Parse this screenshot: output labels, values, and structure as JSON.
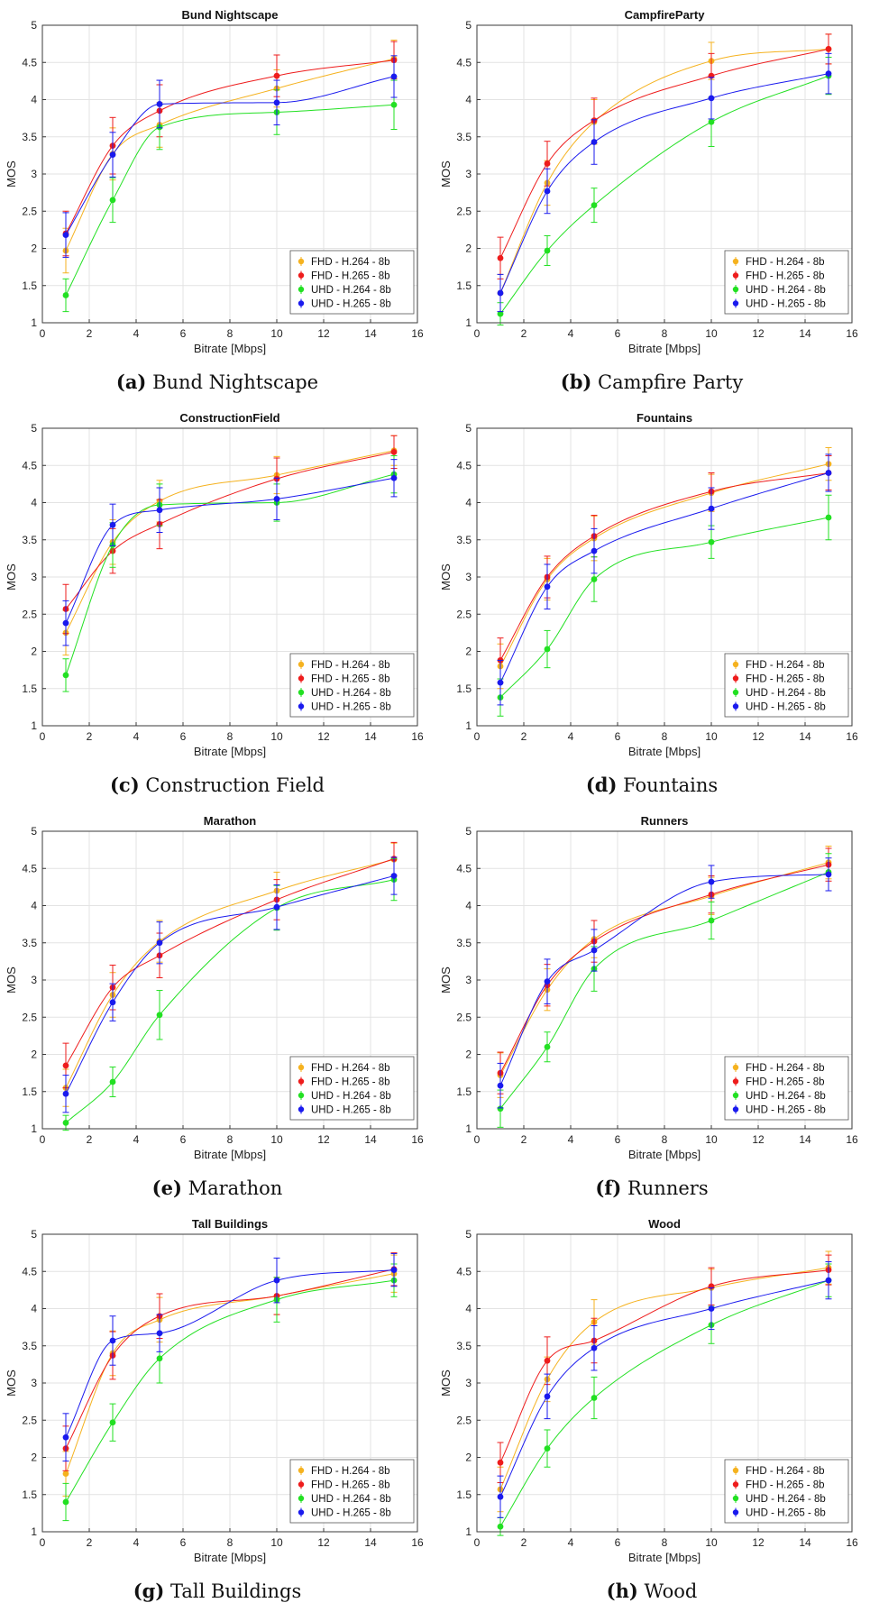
{
  "legend": [
    "FHD - H.264 - 8b",
    "FHD - H.265 - 8b",
    "UHD - H.264 - 8b",
    "UHD - H.265 - 8b"
  ],
  "series_colors": [
    "#f5b21f",
    "#ee1c1c",
    "#22e022",
    "#1a1aee"
  ],
  "chart_data": [
    {
      "type": "scatter",
      "title": "Bund Nightscape",
      "caption_label": "(a)",
      "caption_text": "Bund Nightscape",
      "xlabel": "Bitrate [Mbps]",
      "ylabel": "MOS",
      "xlim": [
        0,
        16
      ],
      "ylim": [
        1,
        5
      ],
      "xticks": [
        0,
        2,
        4,
        6,
        8,
        10,
        12,
        14,
        16
      ],
      "yticks": [
        1,
        1.5,
        2,
        2.5,
        3,
        3.5,
        4,
        4.5,
        5
      ],
      "x": [
        1,
        3,
        5,
        10,
        15
      ],
      "series": [
        {
          "name": "FHD - H.264 - 8b",
          "values": [
            1.97,
            3.27,
            3.66,
            4.15,
            4.55
          ],
          "err": [
            0.3,
            0.35,
            0.3,
            0.25,
            0.25
          ]
        },
        {
          "name": "FHD - H.265 - 8b",
          "values": [
            2.2,
            3.38,
            3.85,
            4.32,
            4.53
          ],
          "err": [
            0.3,
            0.38,
            0.35,
            0.28,
            0.25
          ]
        },
        {
          "name": "UHD - H.264 - 8b",
          "values": [
            1.37,
            2.65,
            3.63,
            3.83,
            3.93
          ],
          "err": [
            0.22,
            0.3,
            0.3,
            0.3,
            0.33
          ]
        },
        {
          "name": "UHD - H.265 - 8b",
          "values": [
            2.18,
            3.26,
            3.94,
            3.96,
            4.31
          ],
          "err": [
            0.3,
            0.3,
            0.32,
            0.3,
            0.28
          ]
        }
      ]
    },
    {
      "type": "scatter",
      "title": "CampfireParty",
      "caption_label": "(b)",
      "caption_text": "Campfire Party",
      "xlabel": "Bitrate [Mbps]",
      "ylabel": "MOS",
      "xlim": [
        0,
        16
      ],
      "ylim": [
        1,
        5
      ],
      "xticks": [
        0,
        2,
        4,
        6,
        8,
        10,
        12,
        14,
        16
      ],
      "yticks": [
        1,
        1.5,
        2,
        2.5,
        3,
        3.5,
        4,
        4.5,
        5
      ],
      "x": [
        1,
        3,
        5,
        10,
        15
      ],
      "series": [
        {
          "name": "FHD - H.264 - 8b",
          "values": [
            1.4,
            2.88,
            3.7,
            4.52,
            4.68
          ],
          "err": [
            0.25,
            0.3,
            0.3,
            0.25,
            0.2
          ]
        },
        {
          "name": "FHD - H.265 - 8b",
          "values": [
            1.87,
            3.14,
            3.72,
            4.32,
            4.68
          ],
          "err": [
            0.28,
            0.3,
            0.3,
            0.3,
            0.2
          ]
        },
        {
          "name": "UHD - H.264 - 8b",
          "values": [
            1.12,
            1.97,
            2.58,
            3.7,
            4.32
          ],
          "err": [
            0.15,
            0.2,
            0.23,
            0.33,
            0.25
          ]
        },
        {
          "name": "UHD - H.265 - 8b",
          "values": [
            1.4,
            2.77,
            3.43,
            4.02,
            4.35
          ],
          "err": [
            0.25,
            0.3,
            0.3,
            0.28,
            0.27
          ]
        }
      ]
    },
    {
      "type": "scatter",
      "title": "ConstructionField",
      "caption_label": "(c)",
      "caption_text": "Construction Field",
      "xlabel": "Bitrate [Mbps]",
      "ylabel": "MOS",
      "xlim": [
        0,
        16
      ],
      "ylim": [
        1,
        5
      ],
      "xticks": [
        0,
        2,
        4,
        6,
        8,
        10,
        12,
        14,
        16
      ],
      "yticks": [
        1,
        1.5,
        2,
        2.5,
        3,
        3.5,
        4,
        4.5,
        5
      ],
      "x": [
        1,
        3,
        5,
        10,
        15
      ],
      "series": [
        {
          "name": "FHD - H.264 - 8b",
          "values": [
            2.25,
            3.47,
            4.02,
            4.37,
            4.7
          ],
          "err": [
            0.3,
            0.3,
            0.28,
            0.25,
            0.2
          ]
        },
        {
          "name": "FHD - H.265 - 8b",
          "values": [
            2.57,
            3.35,
            3.71,
            4.32,
            4.68
          ],
          "err": [
            0.33,
            0.3,
            0.33,
            0.28,
            0.22
          ]
        },
        {
          "name": "UHD - H.264 - 8b",
          "values": [
            1.68,
            3.43,
            3.97,
            4.0,
            4.38
          ],
          "err": [
            0.22,
            0.3,
            0.28,
            0.25,
            0.25
          ]
        },
        {
          "name": "UHD - H.265 - 8b",
          "values": [
            2.38,
            3.7,
            3.9,
            4.05,
            4.33
          ],
          "err": [
            0.3,
            0.28,
            0.3,
            0.28,
            0.25
          ]
        }
      ]
    },
    {
      "type": "scatter",
      "title": "Fountains",
      "caption_label": "(d)",
      "caption_text": "Fountains",
      "xlabel": "Bitrate [Mbps]",
      "ylabel": "MOS",
      "xlim": [
        0,
        16
      ],
      "ylim": [
        1,
        5
      ],
      "xticks": [
        0,
        2,
        4,
        6,
        8,
        10,
        12,
        14,
        16
      ],
      "yticks": [
        1,
        1.5,
        2,
        2.5,
        3,
        3.5,
        4,
        4.5,
        5
      ],
      "x": [
        1,
        3,
        5,
        10,
        15
      ],
      "series": [
        {
          "name": "FHD - H.264 - 8b",
          "values": [
            1.8,
            2.97,
            3.52,
            4.13,
            4.52
          ],
          "err": [
            0.3,
            0.28,
            0.3,
            0.25,
            0.22
          ]
        },
        {
          "name": "FHD - H.265 - 8b",
          "values": [
            1.88,
            3.0,
            3.55,
            4.15,
            4.4
          ],
          "err": [
            0.3,
            0.28,
            0.28,
            0.25,
            0.23
          ]
        },
        {
          "name": "UHD - H.264 - 8b",
          "values": [
            1.38,
            2.03,
            2.97,
            3.47,
            3.8
          ],
          "err": [
            0.25,
            0.25,
            0.3,
            0.22,
            0.3
          ]
        },
        {
          "name": "UHD - H.265 - 8b",
          "values": [
            1.58,
            2.87,
            3.35,
            3.92,
            4.4
          ],
          "err": [
            0.3,
            0.3,
            0.3,
            0.28,
            0.25
          ]
        }
      ]
    },
    {
      "type": "scatter",
      "title": "Marathon",
      "caption_label": "(e)",
      "caption_text": "Marathon",
      "xlabel": "Bitrate [Mbps]",
      "ylabel": "MOS",
      "xlim": [
        0,
        16
      ],
      "ylim": [
        1,
        5
      ],
      "xticks": [
        0,
        2,
        4,
        6,
        8,
        10,
        12,
        14,
        16
      ],
      "yticks": [
        1,
        1.5,
        2,
        2.5,
        3,
        3.5,
        4,
        4.5,
        5
      ],
      "x": [
        1,
        3,
        5,
        10,
        15
      ],
      "series": [
        {
          "name": "FHD - H.264 - 8b",
          "values": [
            1.55,
            2.8,
            3.52,
            4.2,
            4.62
          ],
          "err": [
            0.25,
            0.3,
            0.28,
            0.25,
            0.22
          ]
        },
        {
          "name": "FHD - H.265 - 8b",
          "values": [
            1.85,
            2.9,
            3.33,
            4.08,
            4.63
          ],
          "err": [
            0.3,
            0.3,
            0.3,
            0.27,
            0.22
          ]
        },
        {
          "name": "UHD - H.264 - 8b",
          "values": [
            1.08,
            1.63,
            2.53,
            3.97,
            4.35
          ],
          "err": [
            0.1,
            0.2,
            0.33,
            0.3,
            0.28
          ]
        },
        {
          "name": "UHD - H.265 - 8b",
          "values": [
            1.47,
            2.7,
            3.5,
            3.98,
            4.4
          ],
          "err": [
            0.25,
            0.25,
            0.28,
            0.3,
            0.25
          ]
        }
      ]
    },
    {
      "type": "scatter",
      "title": "Runners",
      "caption_label": "(f)",
      "caption_text": "Runners",
      "xlabel": "Bitrate [Mbps]",
      "ylabel": "MOS",
      "xlim": [
        0,
        16
      ],
      "ylim": [
        1,
        5
      ],
      "xticks": [
        0,
        2,
        4,
        6,
        8,
        10,
        12,
        14,
        16
      ],
      "yticks": [
        1,
        1.5,
        2,
        2.5,
        3,
        3.5,
        4,
        4.5,
        5
      ],
      "x": [
        1,
        3,
        5,
        10,
        15
      ],
      "series": [
        {
          "name": "FHD - H.264 - 8b",
          "values": [
            1.72,
            2.87,
            3.55,
            4.13,
            4.58
          ],
          "err": [
            0.3,
            0.28,
            0.25,
            0.25,
            0.22
          ]
        },
        {
          "name": "FHD - H.265 - 8b",
          "values": [
            1.75,
            2.93,
            3.52,
            4.15,
            4.55
          ],
          "err": [
            0.28,
            0.28,
            0.28,
            0.25,
            0.22
          ]
        },
        {
          "name": "UHD - H.264 - 8b",
          "values": [
            1.27,
            2.1,
            3.15,
            3.8,
            4.45
          ],
          "err": [
            0.25,
            0.2,
            0.3,
            0.25,
            0.25
          ]
        },
        {
          "name": "UHD - H.265 - 8b",
          "values": [
            1.58,
            2.98,
            3.4,
            4.32,
            4.42
          ],
          "err": [
            0.3,
            0.3,
            0.28,
            0.22,
            0.22
          ]
        }
      ]
    },
    {
      "type": "scatter",
      "title": "Tall Buildings",
      "caption_label": "(g)",
      "caption_text": "Tall Buildings",
      "xlabel": "Bitrate [Mbps]",
      "ylabel": "MOS",
      "xlim": [
        0,
        16
      ],
      "ylim": [
        1,
        5
      ],
      "xticks": [
        0,
        2,
        4,
        6,
        8,
        10,
        12,
        14,
        16
      ],
      "yticks": [
        1,
        1.5,
        2,
        2.5,
        3,
        3.5,
        4,
        4.5,
        5
      ],
      "x": [
        1,
        3,
        5,
        10,
        15
      ],
      "series": [
        {
          "name": "FHD - H.264 - 8b",
          "values": [
            1.78,
            3.4,
            3.85,
            4.17,
            4.47
          ],
          "err": [
            0.3,
            0.3,
            0.3,
            0.25,
            0.25
          ]
        },
        {
          "name": "FHD - H.265 - 8b",
          "values": [
            2.12,
            3.37,
            3.9,
            4.17,
            4.53
          ],
          "err": [
            0.3,
            0.32,
            0.3,
            0.25,
            0.22
          ]
        },
        {
          "name": "UHD - H.264 - 8b",
          "values": [
            1.4,
            2.47,
            3.33,
            4.12,
            4.38
          ],
          "err": [
            0.25,
            0.25,
            0.33,
            0.3,
            0.22
          ]
        },
        {
          "name": "UHD - H.265 - 8b",
          "values": [
            2.27,
            3.57,
            3.67,
            4.38,
            4.52
          ],
          "err": [
            0.32,
            0.33,
            0.25,
            0.3,
            0.22
          ]
        }
      ]
    },
    {
      "type": "scatter",
      "title": "Wood",
      "caption_label": "(h)",
      "caption_text": "Wood",
      "xlabel": "Bitrate [Mbps]",
      "ylabel": "MOS",
      "xlim": [
        0,
        16
      ],
      "ylim": [
        1,
        5
      ],
      "xticks": [
        0,
        2,
        4,
        6,
        8,
        10,
        12,
        14,
        16
      ],
      "yticks": [
        1,
        1.5,
        2,
        2.5,
        3,
        3.5,
        4,
        4.5,
        5
      ],
      "x": [
        1,
        3,
        5,
        10,
        15
      ],
      "series": [
        {
          "name": "FHD - H.264 - 8b",
          "values": [
            1.57,
            3.05,
            3.82,
            4.28,
            4.55
          ],
          "err": [
            0.3,
            0.3,
            0.3,
            0.25,
            0.22
          ]
        },
        {
          "name": "FHD - H.265 - 8b",
          "values": [
            1.93,
            3.3,
            3.57,
            4.3,
            4.52
          ],
          "err": [
            0.27,
            0.32,
            0.3,
            0.25,
            0.2
          ]
        },
        {
          "name": "UHD - H.264 - 8b",
          "values": [
            1.07,
            2.12,
            2.8,
            3.78,
            4.38
          ],
          "err": [
            0.12,
            0.25,
            0.28,
            0.25,
            0.22
          ]
        },
        {
          "name": "UHD - H.265 - 8b",
          "values": [
            1.47,
            2.82,
            3.47,
            4.0,
            4.38
          ],
          "err": [
            0.28,
            0.3,
            0.3,
            0.28,
            0.25
          ]
        }
      ]
    }
  ]
}
